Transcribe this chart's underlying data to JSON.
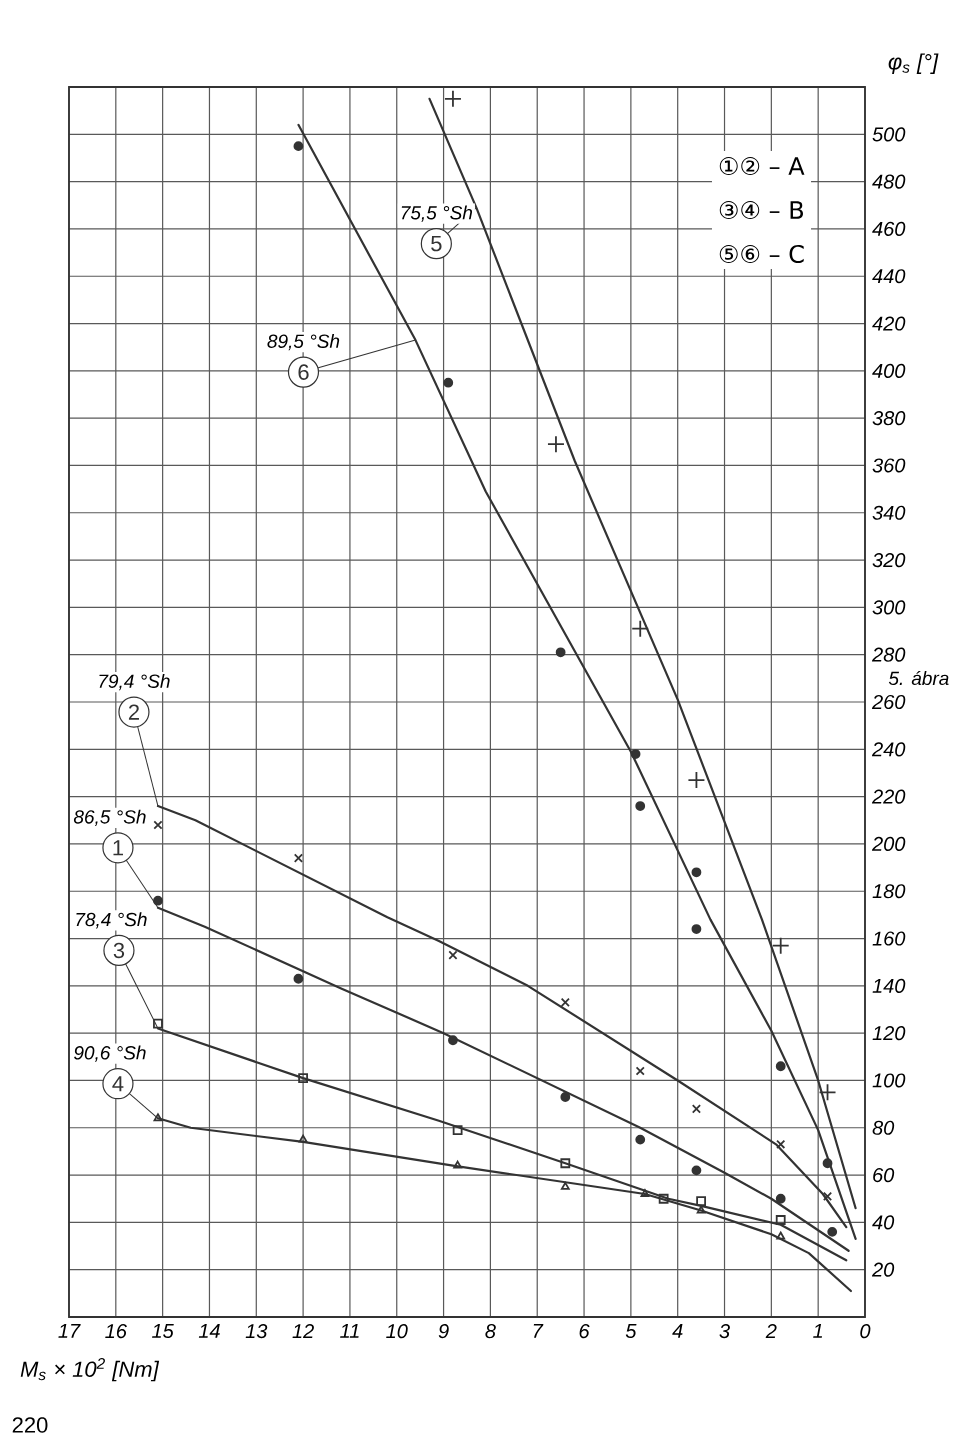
{
  "chart_data": {
    "type": "line",
    "xlabel": "M$_{s}$ × 10$^{2}$ [Nm]",
    "ylabel": "φ$_{s}$ [°]",
    "xlim": [
      17,
      0
    ],
    "xticks": [
      0,
      1,
      2,
      3,
      4,
      5,
      6,
      7,
      8,
      9,
      10,
      11,
      12,
      13,
      14,
      15,
      16,
      17
    ],
    "ylim": [
      0,
      520
    ],
    "yticks": [
      20,
      40,
      60,
      80,
      100,
      120,
      140,
      160,
      180,
      200,
      220,
      240,
      260,
      280,
      300,
      320,
      340,
      360,
      380,
      400,
      420,
      440,
      460,
      480,
      500
    ],
    "grid": true,
    "legend": "top left",
    "series": [
      {
        "name": "1",
        "type": "line",
        "color": "#333333",
        "x": [
          0.35,
          2.0,
          3.0,
          4.8,
          9.0,
          11.2,
          14.1,
          15.1
        ],
        "values": [
          28,
          50,
          61,
          80,
          120,
          139,
          165,
          173
        ]
      },
      {
        "name": "2",
        "type": "line",
        "color": "#333333",
        "x": [
          0.4,
          0.9,
          1.9,
          4.0,
          7.2,
          9.1,
          10.2,
          14.3,
          15.1
        ],
        "values": [
          38,
          52,
          73,
          100,
          140,
          159,
          169,
          210,
          216
        ]
      },
      {
        "name": "3",
        "type": "line",
        "color": "#333333",
        "x": [
          0.4,
          1.8,
          3.5,
          4.2,
          6.4,
          9.1,
          12.0,
          15.1
        ],
        "values": [
          24,
          39,
          47,
          50,
          65,
          83,
          101,
          122
        ]
      },
      {
        "name": "4",
        "type": "line",
        "color": "#333333",
        "x": [
          0.3,
          1.2,
          2.0,
          3.5,
          4.7,
          8.8,
          12.0,
          14.4,
          15.1
        ],
        "values": [
          11,
          27,
          35,
          45,
          52,
          64,
          74,
          80,
          84
        ]
      },
      {
        "name": "5",
        "type": "line",
        "color": "#333333",
        "x": [
          0.2,
          1.0,
          2.2,
          4.0,
          6.2,
          8.3,
          9.3
        ],
        "values": [
          46,
          100,
          168,
          261,
          362,
          469,
          515
        ]
      },
      {
        "name": "6",
        "type": "line",
        "color": "#333333",
        "x": [
          0.2,
          1.0,
          2.0,
          3.3,
          5.0,
          8.1,
          9.6,
          12.1
        ],
        "values": [
          33,
          79,
          121,
          168,
          239,
          349,
          413,
          504
        ]
      },
      {
        "type": "scatter",
        "marker": "circle",
        "color": "#333333",
        "x": [
          0.7,
          1.8,
          3.6,
          4.8,
          6.4,
          8.8,
          12.1,
          15.1
        ],
        "values": [
          36,
          50,
          62,
          75,
          93,
          117,
          143,
          176
        ]
      },
      {
        "type": "scatter",
        "marker": "x",
        "color": "#333333",
        "x": [
          0.8,
          1.8,
          3.6,
          4.8,
          6.4,
          8.8,
          12.1,
          15.1
        ],
        "values": [
          51,
          73,
          88,
          104,
          133,
          153,
          194,
          208
        ]
      },
      {
        "type": "scatter",
        "marker": "square",
        "color": "#333333",
        "x": [
          1.8,
          3.5,
          4.3,
          6.4,
          8.7,
          12.0,
          15.1
        ],
        "values": [
          41,
          49,
          50,
          65,
          79,
          101,
          124
        ]
      },
      {
        "type": "scatter",
        "marker": "triangle",
        "color": "#333333",
        "x": [
          1.8,
          3.5,
          4.7,
          6.4,
          8.7,
          12.0,
          15.1
        ],
        "values": [
          34,
          45,
          52,
          55,
          64,
          75,
          84
        ]
      },
      {
        "type": "scatter",
        "marker": "cross",
        "color": "#333333",
        "x": [
          0.8,
          1.8,
          3.6,
          4.8,
          6.6,
          8.8
        ],
        "values": [
          95,
          157,
          227,
          291,
          369,
          515
        ]
      },
      {
        "type": "scatter",
        "marker": "circle",
        "color": "#333333",
        "x": [
          0.8,
          1.8,
          3.6,
          3.6,
          4.8,
          4.9,
          6.5,
          8.9,
          12.1
        ],
        "values": [
          65,
          106,
          164,
          188,
          216,
          238,
          281,
          395,
          495
        ]
      }
    ],
    "annotations": [
      {
        "text": "86,5 °Sh",
        "x": 15.1,
        "y": 173
      },
      {
        "text": "79,4 °Sh",
        "x": 15.1,
        "y": 216
      },
      {
        "text": "78,4 °Sh",
        "x": 15.1,
        "y": 122
      },
      {
        "text": "90,6 °Sh",
        "x": 15.1,
        "y": 84
      },
      {
        "text": "75,5 °Sh",
        "x": 8.3,
        "y": 469
      },
      {
        "text": "89,5 °Sh",
        "x": 9.6,
        "y": 413
      },
      "①② – A",
      "③④ – B",
      "⑤⑥ – C",
      "5. ábra",
      "220"
    ]
  }
}
